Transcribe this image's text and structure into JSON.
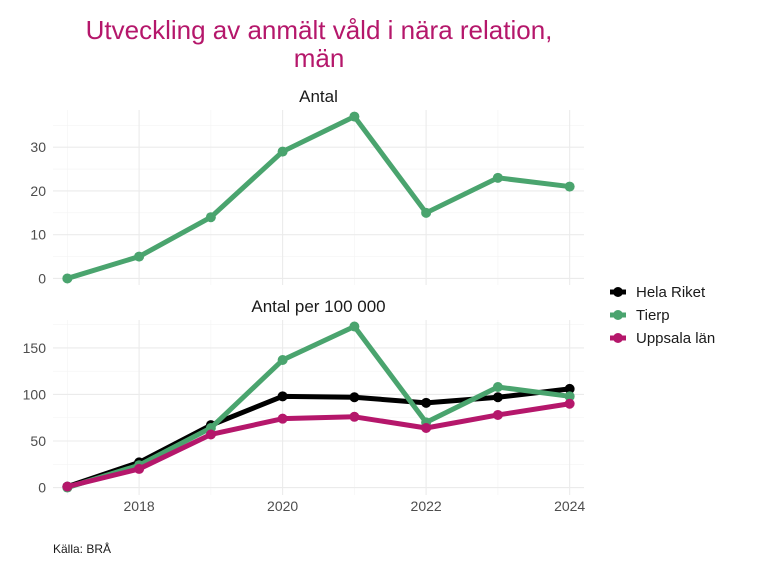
{
  "chart_data": {
    "type": "line",
    "title": [
      "Utveckling av anmält våld i nära relation,",
      "män"
    ],
    "caption": "Källa: BRÅ",
    "x": [
      2017,
      2018,
      2019,
      2020,
      2021,
      2022,
      2023,
      2024
    ],
    "xlim": [
      2016.8,
      2024.2
    ],
    "x_ticks": [
      2018,
      2020,
      2022,
      2024
    ],
    "x_tick_labels": [
      "2018",
      "2020",
      "2022",
      "2024"
    ],
    "legend": {
      "placement": "right",
      "entries": [
        {
          "name": "Hela Riket",
          "color": "#000000"
        },
        {
          "name": "Tierp",
          "color": "#4aa46e"
        },
        {
          "name": "Uppsala län",
          "color": "#b5176b"
        }
      ]
    },
    "panels": [
      {
        "title": "Antal",
        "ylim": [
          -1.5,
          38.5
        ],
        "y_ticks": [
          0,
          10,
          20,
          30
        ],
        "y_tick_labels": [
          "0",
          "10",
          "20",
          "30"
        ],
        "series": [
          {
            "name": "Tierp",
            "color": "#4aa46e",
            "values": [
              0,
              5,
              14,
              29,
              37,
              15,
              23,
              21
            ]
          }
        ]
      },
      {
        "title": "Antal per 100 000",
        "ylim": [
          -8,
          180
        ],
        "y_ticks": [
          0,
          50,
          100,
          150
        ],
        "y_tick_labels": [
          "0",
          "50",
          "100",
          "150"
        ],
        "series": [
          {
            "name": "Hela Riket",
            "color": "#000000",
            "values": [
              1,
              27,
              67,
              98,
              97,
              91,
              97,
              106
            ]
          },
          {
            "name": "Tierp",
            "color": "#4aa46e",
            "values": [
              0,
              24,
              64,
              137,
              173,
              70,
              108,
              98
            ]
          },
          {
            "name": "Uppsala län",
            "color": "#b5176b",
            "values": [
              1,
              20,
              57,
              74,
              76,
              64,
              78,
              90
            ]
          }
        ]
      }
    ]
  }
}
